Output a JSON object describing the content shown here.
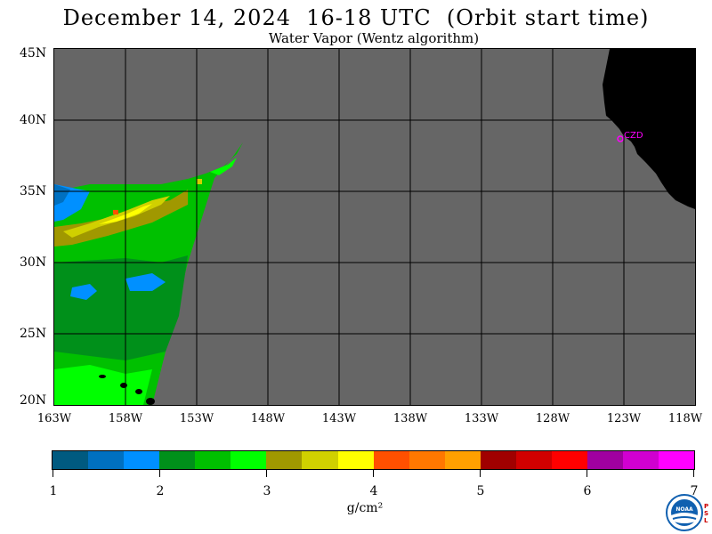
{
  "header": {
    "title": "December 14, 2024  16-18 UTC  (Orbit start time)",
    "subtitle": "Water Vapor (Wentz algorithm)"
  },
  "map": {
    "lat_labels": [
      "45N",
      "40N",
      "35N",
      "30N",
      "25N",
      "20N"
    ],
    "lon_labels": [
      "163W",
      "158W",
      "153W",
      "148W",
      "143W",
      "138W",
      "133W",
      "128W",
      "123W",
      "118W"
    ],
    "station_label": "CZD",
    "colors": {
      "no_data": "#666666",
      "land": "#000000",
      "grid": "#000000",
      "station": "#ff00ff"
    }
  },
  "colorbar": {
    "tick_labels": [
      "1",
      "2",
      "3",
      "4",
      "5",
      "6",
      "7"
    ],
    "unit": "g/cm²",
    "colors": [
      "#005a80",
      "#0070c0",
      "#0090ff",
      "#00901a",
      "#00c000",
      "#00ff00",
      "#a09800",
      "#d0d000",
      "#ffff00",
      "#ff5000",
      "#ff7800",
      "#ffa000",
      "#a00000",
      "#d00000",
      "#ff0000",
      "#a000a0",
      "#d000d0",
      "#ff00ff"
    ]
  },
  "logo": {
    "text": "NOAA",
    "side_text": "PSL"
  }
}
